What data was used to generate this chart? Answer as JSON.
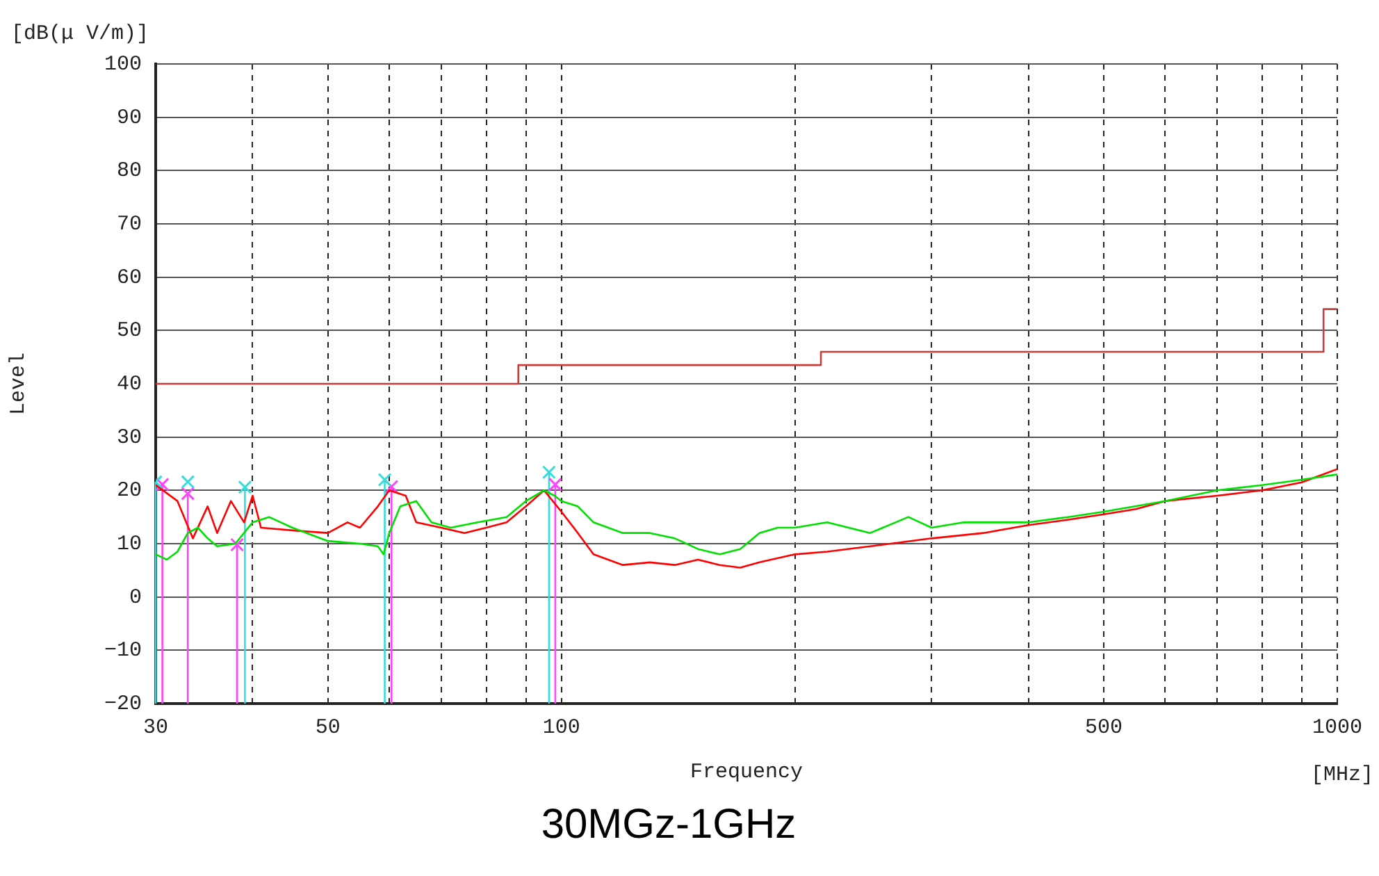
{
  "chart_data": {
    "type": "line",
    "title": "30MGz-1GHz",
    "xlabel": "Frequency",
    "ylabel": "Level",
    "annotations": [
      "[dB(μ V/m)]",
      "[MHz]"
    ],
    "log": "x",
    "xlim": [
      30,
      1000
    ],
    "ylim": [
      -20,
      100
    ],
    "xticks": [
      30,
      {
        "value": 40,
        "label": null
      },
      50,
      {
        "value": 60,
        "label": null
      },
      {
        "value": 70,
        "label": null
      },
      {
        "value": 80,
        "label": null
      },
      {
        "value": 90,
        "label": null
      },
      100,
      {
        "value": 200,
        "label": null
      },
      {
        "value": 300,
        "label": null
      },
      {
        "value": 400,
        "label": null
      },
      500,
      {
        "value": 600,
        "label": null
      },
      {
        "value": 700,
        "label": null
      },
      {
        "value": 800,
        "label": null
      },
      {
        "value": 900,
        "label": null
      },
      1000
    ],
    "yticks": [
      -20,
      -10,
      0,
      10,
      20,
      30,
      40,
      50,
      60,
      70,
      80,
      90,
      100
    ],
    "grid": true,
    "legend": false,
    "series": [
      {
        "type": "step",
        "color": "#c83c3c",
        "marker": "none",
        "x": [
          30,
          88,
          216,
          960,
          1000
        ],
        "values": [
          40,
          43.5,
          46,
          54,
          54
        ]
      },
      {
        "color": "#00e000",
        "marker": "none",
        "x": [
          30,
          31,
          32,
          33,
          34,
          35,
          36,
          38,
          40,
          42,
          45,
          50,
          55,
          58,
          59,
          60,
          62,
          65,
          68,
          72,
          78,
          85,
          90,
          95,
          98,
          100,
          105,
          110,
          120,
          130,
          140,
          150,
          160,
          170,
          180,
          190,
          200,
          220,
          250,
          280,
          300,
          330,
          350,
          400,
          450,
          500,
          600,
          700,
          800,
          900,
          1000
        ],
        "values": [
          8,
          7,
          8.5,
          12,
          13,
          11,
          9.5,
          10,
          14,
          15,
          13,
          10.5,
          10,
          9.5,
          8,
          12,
          17,
          18,
          14,
          13,
          14,
          15,
          18,
          20,
          19,
          18,
          17,
          14,
          12,
          12,
          11,
          9,
          8,
          9,
          12,
          13,
          13,
          14,
          12,
          15,
          13,
          14,
          14,
          14,
          15,
          16,
          18,
          20,
          21,
          22,
          23
        ]
      },
      {
        "color": "#ff0000",
        "marker": "none",
        "x": [
          30,
          32,
          33.5,
          35,
          36,
          37.5,
          39,
          40,
          41,
          45,
          50,
          53,
          55,
          58,
          60,
          63,
          65,
          70,
          75,
          80,
          85,
          90,
          95,
          100,
          105,
          110,
          120,
          130,
          140,
          150,
          160,
          170,
          180,
          200,
          220,
          250,
          300,
          350,
          400,
          450,
          500,
          550,
          600,
          700,
          800,
          900,
          1000
        ],
        "values": [
          21,
          18,
          11,
          17,
          12,
          18,
          14,
          19,
          13,
          12.5,
          12,
          14,
          13,
          17,
          20,
          19,
          14,
          13,
          12,
          13,
          14,
          17,
          20,
          16,
          12,
          8,
          6,
          6.5,
          6,
          7,
          6,
          5.5,
          6.5,
          8,
          8.5,
          9.5,
          11,
          12,
          13.5,
          14.5,
          15.5,
          16.5,
          18,
          19,
          20,
          21.5,
          24
        ]
      },
      {
        "type": "scatter",
        "color": "#33dddd",
        "marker": "cross",
        "x": [
          30,
          33,
          39.1,
          59.2,
          96.4
        ],
        "values": [
          21.6,
          21.6,
          20.6,
          22,
          23.4
        ],
        "errors": [
          [
            -20,
            21.6
          ],
          null,
          [
            -20,
            20.6
          ],
          [
            -20,
            22
          ],
          [
            -20,
            23.4
          ]
        ]
      },
      {
        "type": "scatter",
        "color": "#ff44ff",
        "marker": "cross",
        "x": [
          30.6,
          33,
          38.2,
          60.4,
          98.2
        ],
        "values": [
          21.1,
          19.4,
          9.8,
          20.7,
          21.1
        ],
        "errors": [
          [
            -20,
            21.1
          ],
          [
            -20,
            19.4
          ],
          [
            -20,
            9.8
          ],
          [
            -20,
            20.7
          ],
          [
            -20,
            21.1
          ]
        ]
      }
    ]
  }
}
